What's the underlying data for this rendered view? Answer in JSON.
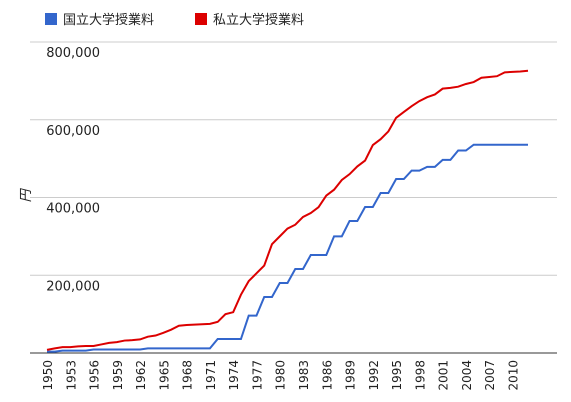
{
  "chart_data": {
    "type": "line",
    "ylabel": "円",
    "x": [
      1950,
      1951,
      1952,
      1953,
      1954,
      1955,
      1956,
      1957,
      1958,
      1959,
      1960,
      1961,
      1962,
      1963,
      1964,
      1965,
      1966,
      1967,
      1968,
      1969,
      1970,
      1971,
      1972,
      1973,
      1974,
      1975,
      1976,
      1977,
      1978,
      1979,
      1980,
      1981,
      1982,
      1983,
      1984,
      1985,
      1986,
      1987,
      1988,
      1989,
      1990,
      1991,
      1992,
      1993,
      1994,
      1995,
      1996,
      1997,
      1998,
      1999,
      2000,
      2001,
      2002,
      2003,
      2004,
      2005,
      2006,
      2007,
      2008,
      2009,
      2010,
      2011,
      2012
    ],
    "series": [
      {
        "name": "国立大学授業料",
        "color": "#3366cc",
        "values": [
          3600,
          3600,
          6000,
          6000,
          6000,
          6000,
          9000,
          9000,
          9000,
          9000,
          9000,
          9000,
          9000,
          12000,
          12000,
          12000,
          12000,
          12000,
          12000,
          12000,
          12000,
          12000,
          36000,
          36000,
          36000,
          36000,
          96000,
          96000,
          144000,
          144000,
          180000,
          180000,
          216000,
          216000,
          252000,
          252000,
          252000,
          300000,
          300000,
          339600,
          339600,
          375600,
          375600,
          411600,
          411600,
          447600,
          447600,
          469200,
          469200,
          478800,
          478800,
          496800,
          496800,
          520800,
          520800,
          535800,
          535800,
          535800,
          535800,
          535800,
          535800,
          535800,
          535800
        ]
      },
      {
        "name": "私立大学授業料",
        "color": "#dc0000",
        "values": [
          8000,
          12000,
          15000,
          15000,
          17000,
          18000,
          18000,
          22000,
          26000,
          28000,
          32000,
          33000,
          35000,
          42000,
          45000,
          52000,
          60000,
          70000,
          72000,
          73000,
          74000,
          75000,
          80000,
          100000,
          105000,
          150000,
          185000,
          205000,
          225000,
          280000,
          300000,
          320000,
          330000,
          350000,
          360000,
          375000,
          405000,
          420000,
          445000,
          460000,
          480000,
          495000,
          535000,
          550000,
          570000,
          605000,
          620000,
          635000,
          648000,
          658000,
          665000,
          680000,
          682000,
          685000,
          692000,
          697000,
          708000,
          710000,
          712000,
          722000,
          723000,
          724000,
          726000
        ]
      }
    ],
    "xlim": [
      1950,
      2012
    ],
    "xticks": [
      1950,
      1953,
      1956,
      1959,
      1962,
      1965,
      1968,
      1971,
      1974,
      1977,
      1980,
      1983,
      1986,
      1989,
      1992,
      1995,
      1998,
      2001,
      2004,
      2007,
      2010
    ],
    "ylim": [
      0,
      800000
    ],
    "yticks": [
      {
        "value": 200000,
        "label": "200,000"
      },
      {
        "value": 400000,
        "label": "400,000"
      },
      {
        "value": 600000,
        "label": "600,000"
      },
      {
        "value": 800000,
        "label": "800,000"
      }
    ],
    "grid": true
  }
}
